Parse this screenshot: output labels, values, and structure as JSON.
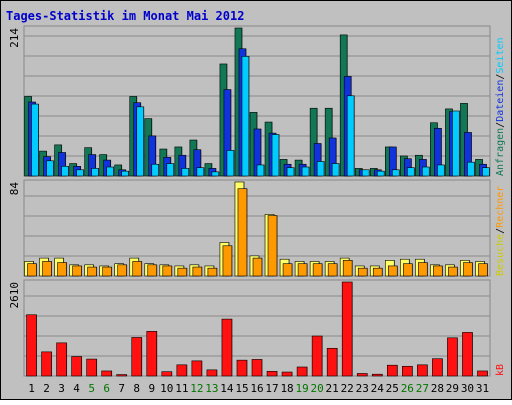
{
  "chart_data": {
    "title": "Tages-Statistik im Monat Mai 2012",
    "type": "bar",
    "x_labels": [
      "1",
      "2",
      "3",
      "4",
      "5",
      "6",
      "7",
      "8",
      "9",
      "10",
      "11",
      "12",
      "13",
      "14",
      "15",
      "16",
      "17",
      "18",
      "19",
      "20",
      "21",
      "22",
      "23",
      "24",
      "25",
      "26",
      "27",
      "28",
      "29",
      "30",
      "31"
    ],
    "weekend_days": [
      5,
      6,
      12,
      13,
      19,
      20,
      26,
      27
    ],
    "colors": {
      "background": "#c0c0c0",
      "title": "#0000cc",
      "border": "#888888",
      "weekday_label": "#000000",
      "weekend_label": "#007700",
      "anfragen": "#117755",
      "dateien": "#1133dd",
      "seiten": "#00ccff",
      "besuche": "#ffff66",
      "rechner": "#ff9900",
      "kb": "#ff1111"
    },
    "panels": [
      {
        "ymax_label": "214",
        "ymax": 214,
        "series": [
          {
            "name": "Anfragen",
            "values": [
              115,
              36,
              45,
              18,
              41,
              31,
              16,
              115,
              83,
              39,
              42,
              52,
              18,
              162,
              214,
              92,
              78,
              24,
              23,
              98,
              98,
              204,
              11,
              11,
              42,
              29,
              30,
              77,
              97,
              105,
              24
            ]
          },
          {
            "name": "Dateien",
            "values": [
              107,
              28,
              34,
              14,
              31,
              23,
              9,
              106,
              58,
              27,
              30,
              38,
              11,
              125,
              184,
              68,
              62,
              17,
              17,
              47,
              55,
              144,
              9,
              9,
              42,
              25,
              24,
              69,
              93,
              63,
              17
            ]
          },
          {
            "name": "Seiten",
            "values": [
              104,
              22,
              14,
              9,
              11,
              13,
              7,
              100,
              17,
              18,
              11,
              12,
              6,
              37,
              173,
              16,
              60,
              12,
              13,
              21,
              18,
              116,
              9,
              7,
              9,
              12,
              13,
              16,
              94,
              20,
              12
            ]
          }
        ]
      },
      {
        "ymax_label": "84",
        "ymax": 84,
        "series": [
          {
            "name": "Besuche",
            "values": [
              13,
              16,
              16,
              10,
              10,
              9,
              11,
              16,
              11,
              10,
              9,
              10,
              9,
              30,
              84,
              18,
              55,
              15,
              13,
              13,
              13,
              16,
              9,
              9,
              14,
              15,
              15,
              10,
              10,
              14,
              13
            ]
          },
          {
            "name": "Rechner",
            "values": [
              11,
              13,
              12,
              9,
              8,
              8,
              10,
              13,
              10,
              9,
              7,
              8,
              7,
              27,
              78,
              16,
              54,
              11,
              11,
              11,
              11,
              14,
              7,
              7,
              9,
              11,
              12,
              9,
              8,
              12,
              11
            ]
          }
        ]
      },
      {
        "ymax_label": "2610",
        "ymax": 2610,
        "series": [
          {
            "name": "kB",
            "values": [
              1700,
              670,
              920,
              540,
              470,
              140,
              40,
              1070,
              1240,
              120,
              310,
              420,
              170,
              1580,
              440,
              460,
              130,
              110,
              250,
              1110,
              770,
              2610,
              70,
              50,
              300,
              270,
              310,
              480,
              1060,
              1210,
              140
            ]
          }
        ]
      }
    ],
    "right_labels": {
      "top": [
        {
          "text": "Anfragen",
          "color": "#117755"
        },
        {
          "text": "/",
          "color": "#000000"
        },
        {
          "text": "Dateien",
          "color": "#1133dd"
        },
        {
          "text": "/",
          "color": "#000000"
        },
        {
          "text": "Seiten",
          "color": "#00ccff"
        }
      ],
      "middle": [
        {
          "text": "Besuche",
          "color": "#cccc00"
        },
        {
          "text": "/",
          "color": "#000000"
        },
        {
          "text": "Rechner",
          "color": "#ff9900"
        }
      ],
      "bottom": [
        {
          "text": "kB",
          "color": "#ff1111"
        }
      ]
    }
  }
}
